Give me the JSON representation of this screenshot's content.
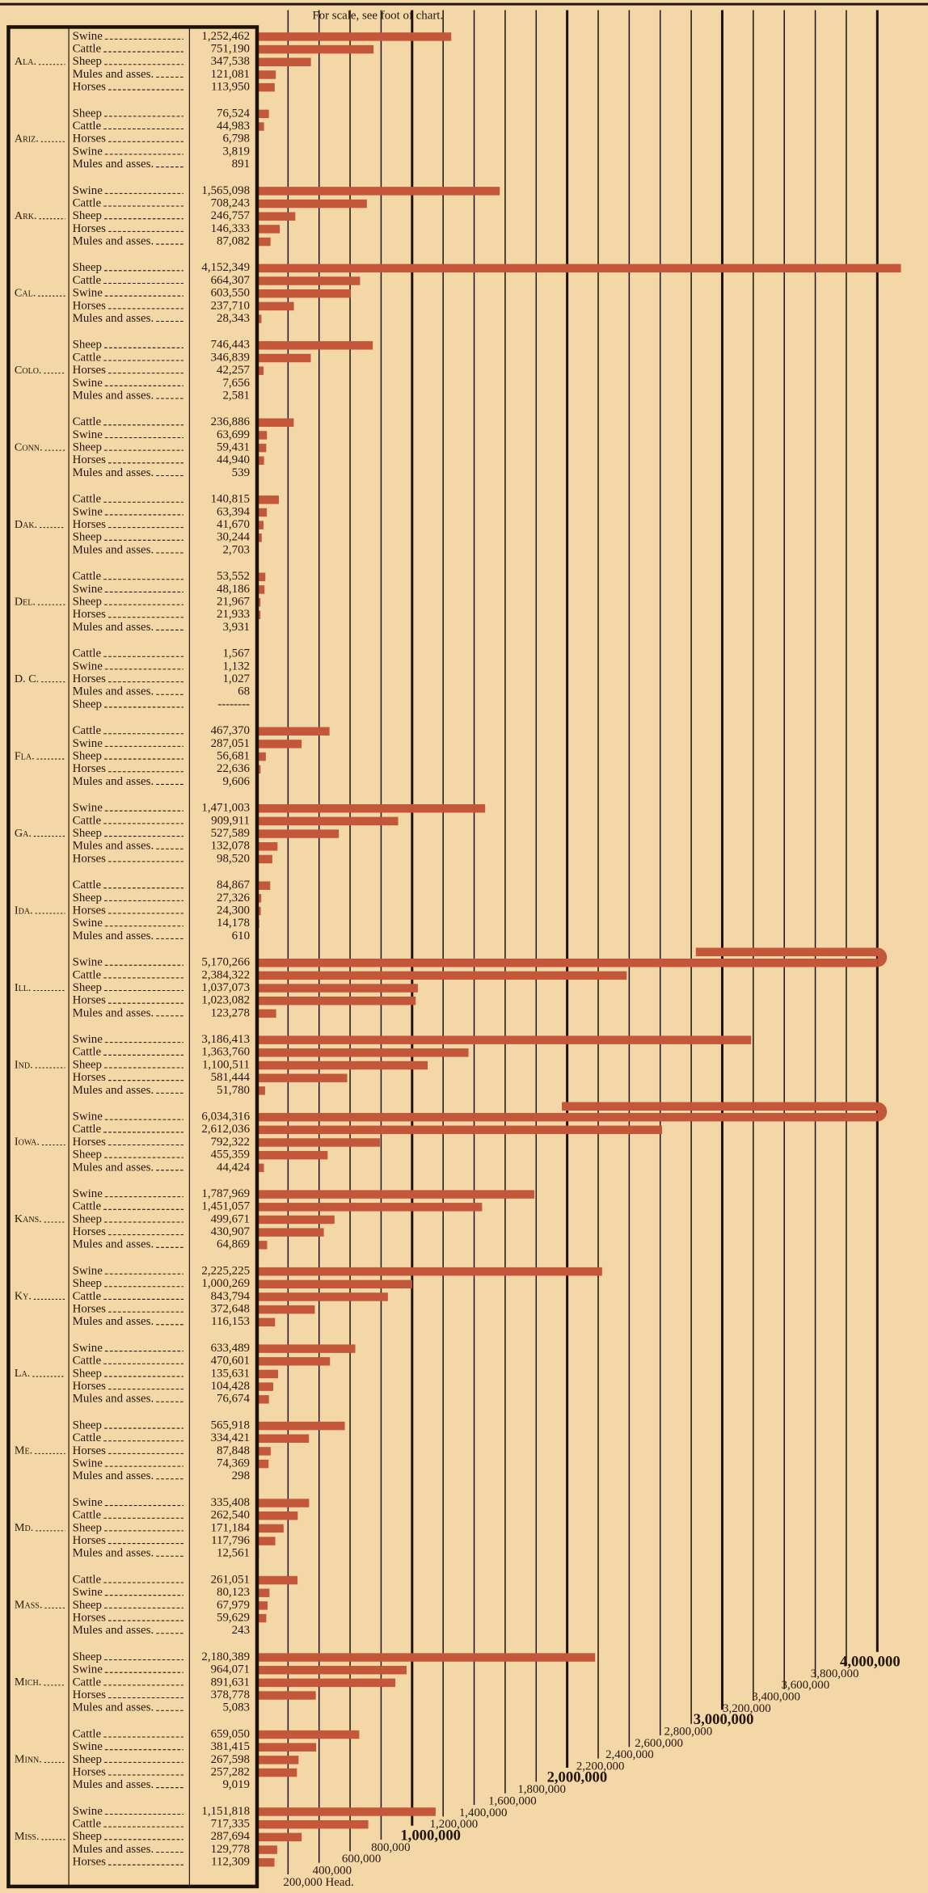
{
  "chart_data": {
    "type": "bar",
    "title": "For scale, see foot of chart.",
    "xlim": [
      0,
      4000000
    ],
    "xticks": [
      {
        "value": 200000,
        "label": "200,000 Head."
      },
      {
        "value": 400000,
        "label": "400,000"
      },
      {
        "value": 600000,
        "label": "600,000"
      },
      {
        "value": 800000,
        "label": "800,000"
      },
      {
        "value": 1000000,
        "label": "1,000,000"
      },
      {
        "value": 1200000,
        "label": "1,200,000"
      },
      {
        "value": 1400000,
        "label": "1,400,000"
      },
      {
        "value": 1600000,
        "label": "1,600,000"
      },
      {
        "value": 1800000,
        "label": "1,800,000"
      },
      {
        "value": 2000000,
        "label": "2,000,000"
      },
      {
        "value": 2200000,
        "label": "2,200,000"
      },
      {
        "value": 2400000,
        "label": "2,400,000"
      },
      {
        "value": 2600000,
        "label": "2,600,000"
      },
      {
        "value": 2800000,
        "label": "2,800,000"
      },
      {
        "value": 3000000,
        "label": "3,000,000"
      },
      {
        "value": 3200000,
        "label": "3,200,000"
      },
      {
        "value": 3400000,
        "label": "3,400,000"
      },
      {
        "value": 3600000,
        "label": "3,600,000"
      },
      {
        "value": 3800000,
        "label": "3,800,000"
      },
      {
        "value": 4000000,
        "label": "4,000,000"
      }
    ],
    "groups": [
      {
        "label": "Ala.",
        "categories": [
          "Swine",
          "Cattle",
          "Sheep",
          "Mules and asses.",
          "Horses"
        ],
        "values": [
          1252462,
          751190,
          347538,
          121081,
          113950
        ],
        "value_labels": [
          "1,252,462",
          "751,190",
          "347,538",
          "121,081",
          "113,950"
        ]
      },
      {
        "label": "Ariz.",
        "categories": [
          "Sheep",
          "Cattle",
          "Horses",
          "Swine",
          "Mules and asses."
        ],
        "values": [
          76524,
          44983,
          6798,
          3819,
          891
        ],
        "value_labels": [
          "76,524",
          "44,983",
          "6,798",
          "3,819",
          "891"
        ]
      },
      {
        "label": "Ark.",
        "categories": [
          "Swine",
          "Cattle",
          "Sheep",
          "Horses",
          "Mules and asses."
        ],
        "values": [
          1565098,
          708243,
          246757,
          146333,
          87082
        ],
        "value_labels": [
          "1,565,098",
          "708,243",
          "246,757",
          "146,333",
          "87,082"
        ]
      },
      {
        "label": "Cal.",
        "categories": [
          "Sheep",
          "Cattle",
          "Swine",
          "Horses",
          "Mules and asses."
        ],
        "values": [
          4152349,
          664307,
          603550,
          237710,
          28343
        ],
        "value_labels": [
          "4,152,349",
          "664,307",
          "603,550",
          "237,710",
          "28,343"
        ]
      },
      {
        "label": "Colo.",
        "categories": [
          "Sheep",
          "Cattle",
          "Horses",
          "Swine",
          "Mules and asses."
        ],
        "values": [
          746443,
          346839,
          42257,
          7656,
          2581
        ],
        "value_labels": [
          "746,443",
          "346,839",
          "42,257",
          "7,656",
          "2,581"
        ]
      },
      {
        "label": "Conn.",
        "categories": [
          "Cattle",
          "Swine",
          "Sheep",
          "Horses",
          "Mules and asses."
        ],
        "values": [
          236886,
          63699,
          59431,
          44940,
          539
        ],
        "value_labels": [
          "236,886",
          "63,699",
          "59,431",
          "44,940",
          "539"
        ]
      },
      {
        "label": "Dak.",
        "categories": [
          "Cattle",
          "Swine",
          "Horses",
          "Sheep",
          "Mules and asses."
        ],
        "values": [
          140815,
          63394,
          41670,
          30244,
          2703
        ],
        "value_labels": [
          "140,815",
          "63,394",
          "41,670",
          "30,244",
          "2,703"
        ]
      },
      {
        "label": "Del.",
        "categories": [
          "Cattle",
          "Swine",
          "Sheep",
          "Horses",
          "Mules and asses."
        ],
        "values": [
          53552,
          48186,
          21967,
          21933,
          3931
        ],
        "value_labels": [
          "53,552",
          "48,186",
          "21,967",
          "21,933",
          "3,931"
        ]
      },
      {
        "label": "D. C.",
        "categories": [
          "Cattle",
          "Swine",
          "Horses",
          "Mules and asses.",
          "Sheep"
        ],
        "values": [
          1567,
          1132,
          1027,
          68,
          null
        ],
        "value_labels": [
          "1,567",
          "1,132",
          "1,027",
          "68",
          "--------"
        ]
      },
      {
        "label": "Fla.",
        "categories": [
          "Cattle",
          "Swine",
          "Sheep",
          "Horses",
          "Mules and asses."
        ],
        "values": [
          467370,
          287051,
          56681,
          22636,
          9606
        ],
        "value_labels": [
          "467,370",
          "287,051",
          "56,681",
          "22,636",
          "9,606"
        ]
      },
      {
        "label": "Ga.",
        "categories": [
          "Swine",
          "Cattle",
          "Sheep",
          "Mules and asses.",
          "Horses"
        ],
        "values": [
          1471003,
          909911,
          527589,
          132078,
          98520
        ],
        "value_labels": [
          "1,471,003",
          "909,911",
          "527,589",
          "132,078",
          "98,520"
        ]
      },
      {
        "label": "Ida.",
        "categories": [
          "Cattle",
          "Sheep",
          "Horses",
          "Swine",
          "Mules and asses."
        ],
        "values": [
          84867,
          27326,
          24300,
          14178,
          610
        ],
        "value_labels": [
          "84,867",
          "27,326",
          "24,300",
          "14,178",
          "610"
        ]
      },
      {
        "label": "Ill.",
        "categories": [
          "Swine",
          "Cattle",
          "Sheep",
          "Horses",
          "Mules and asses."
        ],
        "values": [
          5170266,
          2384322,
          1037073,
          1023082,
          123278
        ],
        "value_labels": [
          "5,170,266",
          "2,384,322",
          "1,037,073",
          "1,023,082",
          "123,278"
        ]
      },
      {
        "label": "Ind.",
        "categories": [
          "Swine",
          "Cattle",
          "Sheep",
          "Horses",
          "Mules and asses."
        ],
        "values": [
          3186413,
          1363760,
          1100511,
          581444,
          51780
        ],
        "value_labels": [
          "3,186,413",
          "1,363,760",
          "1,100,511",
          "581,444",
          "51,780"
        ]
      },
      {
        "label": "Iowa.",
        "categories": [
          "Swine",
          "Cattle",
          "Horses",
          "Sheep",
          "Mules and asses."
        ],
        "values": [
          6034316,
          2612036,
          792322,
          455359,
          44424
        ],
        "value_labels": [
          "6,034,316",
          "2,612,036",
          "792,322",
          "455,359",
          "44,424"
        ]
      },
      {
        "label": "Kans.",
        "categories": [
          "Swine",
          "Cattle",
          "Sheep",
          "Horses",
          "Mules and asses."
        ],
        "values": [
          1787969,
          1451057,
          499671,
          430907,
          64869
        ],
        "value_labels": [
          "1,787,969",
          "1,451,057",
          "499,671",
          "430,907",
          "64,869"
        ]
      },
      {
        "label": "Ky.",
        "categories": [
          "Swine",
          "Sheep",
          "Cattle",
          "Horses",
          "Mules and asses."
        ],
        "values": [
          2225225,
          1000269,
          843794,
          372648,
          116153
        ],
        "value_labels": [
          "2,225,225",
          "1,000,269",
          "843,794",
          "372,648",
          "116,153"
        ]
      },
      {
        "label": "La.",
        "categories": [
          "Swine",
          "Cattle",
          "Sheep",
          "Horses",
          "Mules and asses."
        ],
        "values": [
          633489,
          470601,
          135631,
          104428,
          76674
        ],
        "value_labels": [
          "633,489",
          "470,601",
          "135,631",
          "104,428",
          "76,674"
        ]
      },
      {
        "label": "Me.",
        "categories": [
          "Sheep",
          "Cattle",
          "Horses",
          "Swine",
          "Mules and asses."
        ],
        "values": [
          565918,
          334421,
          87848,
          74369,
          298
        ],
        "value_labels": [
          "565,918",
          "334,421",
          "87,848",
          "74,369",
          "298"
        ]
      },
      {
        "label": "Md.",
        "categories": [
          "Swine",
          "Cattle",
          "Sheep",
          "Horses",
          "Mules and asses."
        ],
        "values": [
          335408,
          262540,
          171184,
          117796,
          12561
        ],
        "value_labels": [
          "335,408",
          "262,540",
          "171,184",
          "117,796",
          "12,561"
        ]
      },
      {
        "label": "Mass.",
        "categories": [
          "Cattle",
          "Swine",
          "Sheep",
          "Horses",
          "Mules and asses."
        ],
        "values": [
          261051,
          80123,
          67979,
          59629,
          243
        ],
        "value_labels": [
          "261,051",
          "80,123",
          "67,979",
          "59,629",
          "243"
        ]
      },
      {
        "label": "Mich.",
        "categories": [
          "Sheep",
          "Swine",
          "Cattle",
          "Horses",
          "Mules and asses."
        ],
        "values": [
          2180389,
          964071,
          891631,
          378778,
          5083
        ],
        "value_labels": [
          "2,180,389",
          "964,071",
          "891,631",
          "378,778",
          "5,083"
        ]
      },
      {
        "label": "Minn.",
        "categories": [
          "Cattle",
          "Swine",
          "Sheep",
          "Horses",
          "Mules and asses."
        ],
        "values": [
          659050,
          381415,
          267598,
          257282,
          9019
        ],
        "value_labels": [
          "659,050",
          "381,415",
          "267,598",
          "257,282",
          "9,019"
        ]
      },
      {
        "label": "Miss.",
        "categories": [
          "Swine",
          "Cattle",
          "Sheep",
          "Mules and asses.",
          "Horses"
        ],
        "values": [
          1151818,
          717335,
          287694,
          129778,
          112309
        ],
        "value_labels": [
          "1,151,818",
          "717,335",
          "287,694",
          "129,778",
          "112,309"
        ]
      }
    ]
  }
}
